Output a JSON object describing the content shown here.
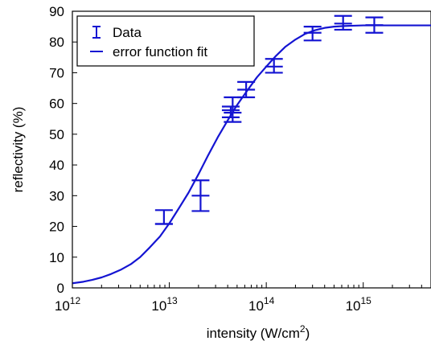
{
  "chart_data": {
    "type": "scatter",
    "title": "",
    "xlabel": "intensity (W/cm",
    "xlabel_sup": "2",
    "xlabel_end": ")",
    "ylabel": "reflectivity (%)",
    "xscale": "log",
    "xlim": [
      1000000000000.0,
      5000000000000000.0
    ],
    "ylim": [
      0,
      90
    ],
    "grid": false,
    "legend_position": "top-left",
    "x_ticks": [
      {
        "value": 1000000000000.0,
        "base": "10",
        "exp": "12"
      },
      {
        "value": 10000000000000.0,
        "base": "10",
        "exp": "13"
      },
      {
        "value": 100000000000000.0,
        "base": "10",
        "exp": "14"
      },
      {
        "value": 1000000000000000.0,
        "base": "10",
        "exp": "15"
      }
    ],
    "y_ticks": [
      "0",
      "10",
      "20",
      "30",
      "40",
      "50",
      "60",
      "70",
      "80",
      "90"
    ],
    "color": "#1414d2",
    "series": [
      {
        "name": "Data",
        "kind": "errorbar",
        "points": [
          {
            "x": 8800000000000.0,
            "y": 20.8,
            "low": 20.8,
            "high": 25.3
          },
          {
            "x": 21000000000000.0,
            "y": 30.0,
            "low": 25.0,
            "high": 35.0
          },
          {
            "x": 43000000000000.0,
            "y": 57.8,
            "low": 55.5,
            "high": 59.0
          },
          {
            "x": 45000000000000.0,
            "y": 57.0,
            "low": 54.0,
            "high": 62.0
          },
          {
            "x": 62000000000000.0,
            "y": 64.5,
            "low": 62.0,
            "high": 67.0
          },
          {
            "x": 120000000000000.0,
            "y": 72.0,
            "low": 70.0,
            "high": 74.5
          },
          {
            "x": 300000000000000.0,
            "y": 83.0,
            "low": 80.5,
            "high": 85.0
          },
          {
            "x": 620000000000000.0,
            "y": 86.0,
            "low": 84.0,
            "high": 88.5
          },
          {
            "x": 1300000000000000.0,
            "y": 85.5,
            "low": 83.0,
            "high": 88.0
          }
        ]
      },
      {
        "name": "error function fit",
        "kind": "line",
        "x": [
          1000000000000.0,
          1300000000000.0,
          1600000000000.0,
          2000000000000.0,
          2500000000000.0,
          3200000000000.0,
          4000000000000.0,
          5000000000000.0,
          6300000000000.0,
          8000000000000.0,
          10000000000000.0,
          12600000000000.0,
          15800000000000.0,
          20000000000000.0,
          25000000000000.0,
          31600000000000.0,
          40000000000000.0,
          50000000000000.0,
          63000000000000.0,
          80000000000000.0,
          100000000000000.0,
          126000000000000.0,
          158000000000000.0,
          200000000000000.0,
          250000000000000.0,
          316000000000000.0,
          400000000000000.0,
          500000000000000.0,
          630000000000000.0,
          800000000000000.0,
          1000000000000000.0,
          1300000000000000.0,
          2000000000000000.0,
          3000000000000000.0,
          5000000000000000.0
        ],
        "y": [
          1.5,
          2.0,
          2.6,
          3.4,
          4.5,
          6.0,
          7.7,
          10.0,
          13.2,
          16.7,
          21.0,
          26.0,
          31.0,
          37.0,
          43.0,
          49.0,
          54.5,
          59.5,
          64.0,
          68.5,
          72.0,
          75.5,
          78.5,
          80.8,
          82.6,
          83.8,
          84.6,
          85.0,
          85.2,
          85.3,
          85.4,
          85.4,
          85.4,
          85.4,
          85.4
        ]
      }
    ]
  }
}
